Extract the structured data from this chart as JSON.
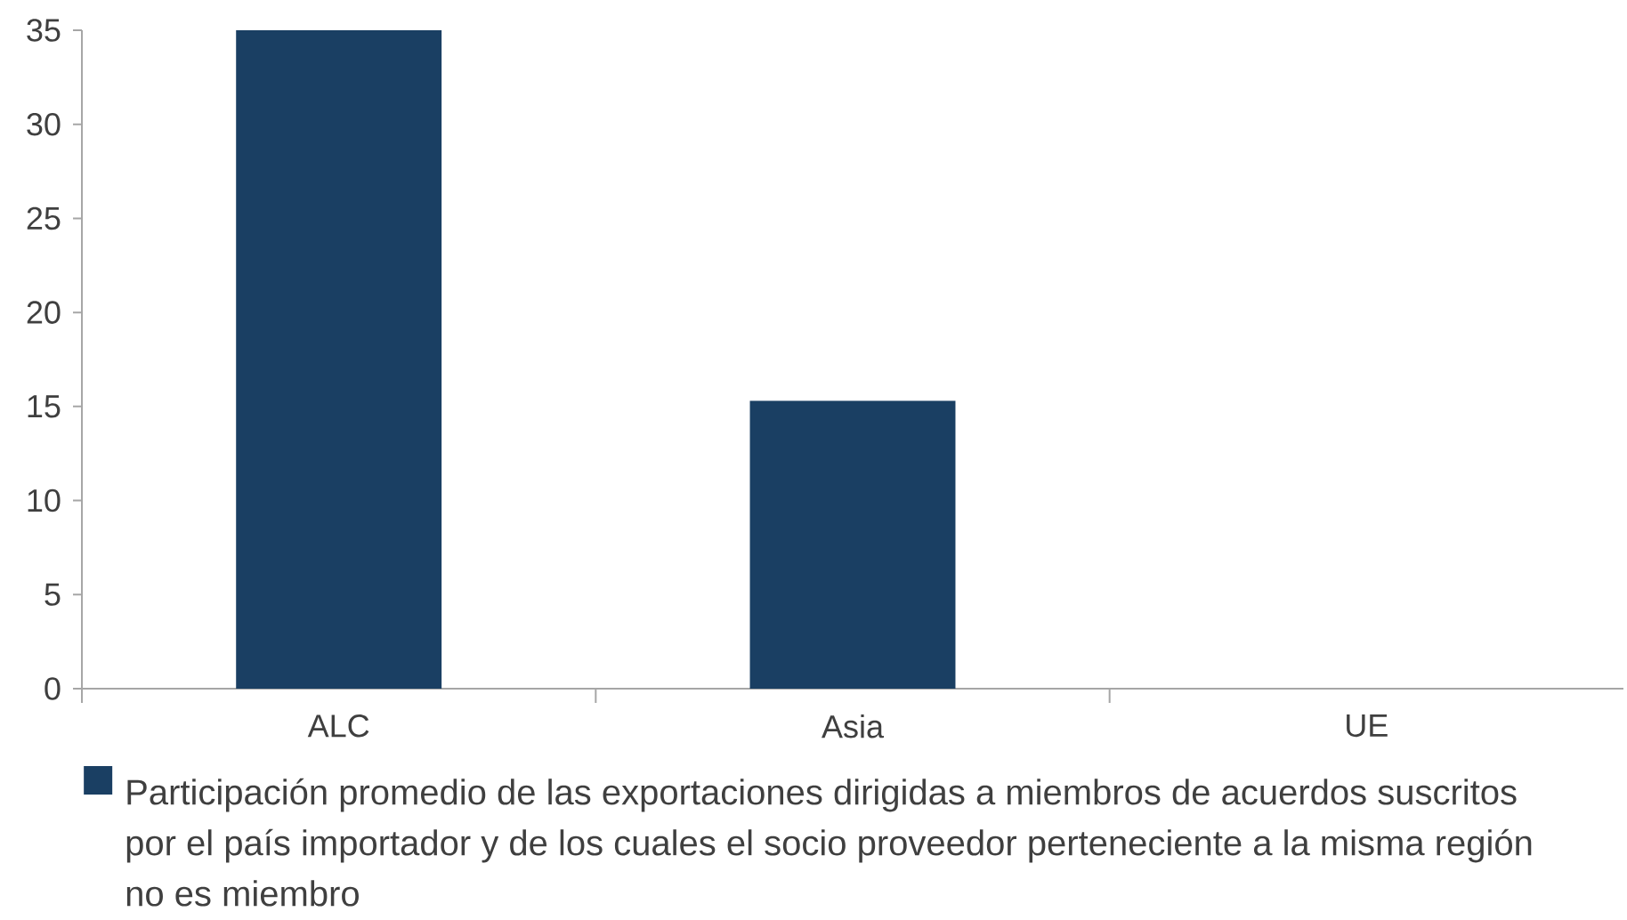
{
  "chart_data": {
    "type": "bar",
    "categories": [
      "ALC",
      "Asia",
      "UE"
    ],
    "series": [
      {
        "name": "Participación promedio de las exportaciones dirigidas a miembros de acuerdos suscritos por el país importador y de los cuales el socio proveedor perteneciente a la misma región no es miembro",
        "color": "#1a3f63",
        "values": [
          35,
          15.3,
          0
        ]
      }
    ],
    "ylim": [
      0,
      35
    ],
    "yticks": [
      0,
      5,
      10,
      15,
      20,
      25,
      30,
      35
    ],
    "legend": "bottom"
  }
}
